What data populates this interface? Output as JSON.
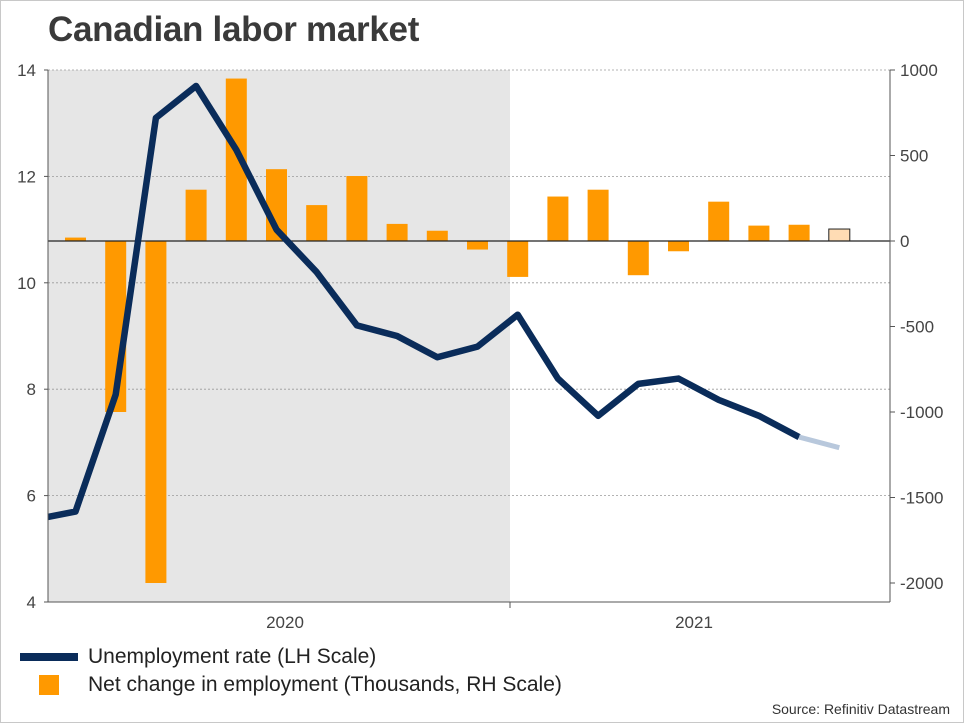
{
  "chart_data": {
    "type": "bar+line",
    "title": "Canadian labor market",
    "months": [
      "2020-01",
      "2020-02",
      "2020-03",
      "2020-04",
      "2020-05",
      "2020-06",
      "2020-07",
      "2020-08",
      "2020-09",
      "2020-10",
      "2020-11",
      "2020-12",
      "2021-01",
      "2021-02",
      "2021-03",
      "2021-04",
      "2021-05",
      "2021-06",
      "2021-07",
      "2021-08",
      "2021-09"
    ],
    "x_labels": [
      "2020",
      "2021"
    ],
    "shaded_period": [
      "2020-01",
      "2020-12"
    ],
    "series": [
      {
        "name": "Unemployment rate (LH Scale)",
        "axis": "left",
        "type": "line",
        "color": "#0a2c5a",
        "forecast_color": "#b8c8dc",
        "start_value": 5.6,
        "values": [
          5.7,
          7.9,
          13.1,
          13.7,
          12.5,
          11.0,
          10.2,
          9.2,
          9.0,
          8.6,
          8.8,
          9.4,
          8.2,
          7.5,
          8.1,
          8.2,
          7.8,
          7.5,
          7.1
        ],
        "forecast_values": [
          7.1,
          6.9
        ]
      },
      {
        "name": "Net change in employment (Thousands, RH Scale)",
        "axis": "right",
        "type": "bar",
        "color": "#ff9900",
        "forecast_color": "#ffdcb4",
        "values": [
          20,
          -1000,
          -2000,
          300,
          950,
          420,
          210,
          380,
          100,
          60,
          -50,
          -210,
          260,
          300,
          -200,
          -60,
          230,
          90,
          95,
          70
        ],
        "forecast_last": true
      }
    ],
    "y_left": {
      "min": 4,
      "max": 14,
      "ticks": [
        "4",
        "6",
        "8",
        "10",
        "12",
        "14"
      ]
    },
    "y_right": {
      "min": -2100,
      "max": 1000,
      "ticks": [
        "1000",
        "500",
        "0",
        "-500",
        "-1000",
        "-1500",
        "-2000"
      ]
    },
    "legend": [
      "Unemployment rate (LH Scale)",
      "Net change in employment (Thousands, RH Scale)"
    ],
    "source": "Source: Refinitiv Datastream"
  }
}
